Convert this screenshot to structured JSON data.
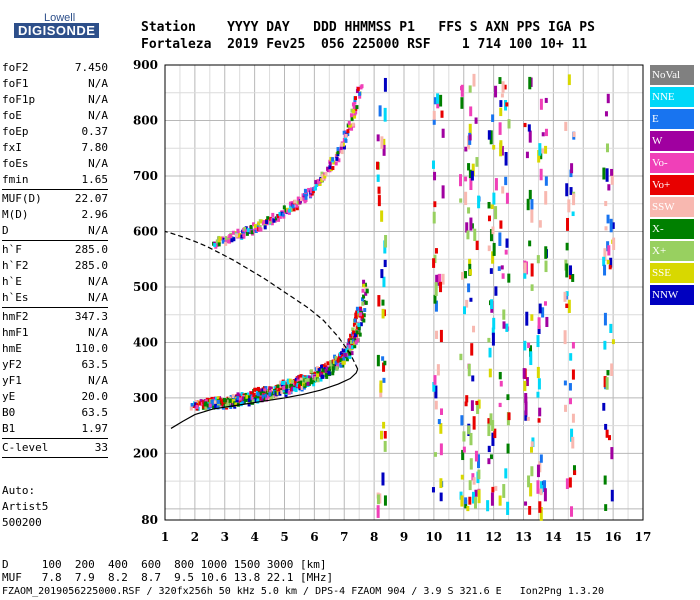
{
  "logo": {
    "top": "Lowell",
    "main": "DIGISONDE"
  },
  "header": {
    "row1": "Station    YYYY DAY   DDD HHMMSS P1   FFS S AXN PPS IGA PS",
    "row2": "Fortaleza  2019 Fev25  056 225000 RSF    1 714 100 10+ 11"
  },
  "params": {
    "group1": [
      {
        "label": "foF2",
        "value": "7.450"
      },
      {
        "label": "foF1",
        "value": "N/A"
      },
      {
        "label": "foF1p",
        "value": "N/A"
      },
      {
        "label": "foE",
        "value": "N/A"
      },
      {
        "label": "foEp",
        "value": "0.37"
      },
      {
        "label": "fxI",
        "value": "7.80"
      },
      {
        "label": "foEs",
        "value": "N/A"
      },
      {
        "label": "fmin",
        "value": "1.65"
      }
    ],
    "group2": [
      {
        "label": "MUF(D)",
        "value": "22.07"
      },
      {
        "label": "M(D)",
        "value": "2.96"
      },
      {
        "label": "D",
        "value": "N/A"
      }
    ],
    "group3": [
      {
        "label": "h`F",
        "value": "285.0"
      },
      {
        "label": "h`F2",
        "value": "285.0"
      },
      {
        "label": "h`E",
        "value": "N/A"
      },
      {
        "label": "h`Es",
        "value": "N/A"
      }
    ],
    "group4": [
      {
        "label": "hmF2",
        "value": "347.3"
      },
      {
        "label": "hmF1",
        "value": "N/A"
      },
      {
        "label": "hmE",
        "value": "110.0"
      },
      {
        "label": "yF2",
        "value": "63.5"
      },
      {
        "label": "yF1",
        "value": "N/A"
      },
      {
        "label": "yE",
        "value": "20.0"
      },
      {
        "label": "B0",
        "value": "63.5"
      },
      {
        "label": "B1",
        "value": "1.97"
      }
    ],
    "group5": [
      {
        "label": "C-level",
        "value": "33"
      }
    ]
  },
  "auto": {
    "l1": "Auto:",
    "l2": "Artist5",
    "l3": "500200"
  },
  "bottom": {
    "d_row": "D     100  200  400  600  800 1000 1500 3000 [km]",
    "muf_row": "MUF   7.8  7.9  8.2  8.7  9.5 10.6 13.8 22.1 [MHz]",
    "footer": "FZAOM_2019056225000.RSF / 320fx256h 50 kHz 5.0 km / DPS-4 FZAOM 904 / 3.9 S 321.6 E   Ion2Png 1.3.20"
  },
  "legend": [
    {
      "label": "NoVal",
      "color": "#808080",
      "text": "#ffffff"
    },
    {
      "label": "NNE",
      "color": "#00d8f8",
      "text": "#ffffff"
    },
    {
      "label": "E",
      "color": "#1874f0",
      "text": "#ffffff"
    },
    {
      "label": "W",
      "color": "#a000a0",
      "text": "#ffffff"
    },
    {
      "label": "Vo-",
      "color": "#f040b8",
      "text": "#ffffff"
    },
    {
      "label": "Vo+",
      "color": "#e80000",
      "text": "#ffffff"
    },
    {
      "label": "SSW",
      "color": "#f8b8b0",
      "text": "#ffffff"
    },
    {
      "label": "X-",
      "color": "#008000",
      "text": "#ffffff"
    },
    {
      "label": "X+",
      "color": "#98d060",
      "text": "#ffffff"
    },
    {
      "label": "SSE",
      "color": "#d8d800",
      "text": "#ffffff"
    },
    {
      "label": "NNW",
      "color": "#0000c0",
      "text": "#ffffff"
    }
  ],
  "chart_data": {
    "type": "scatter",
    "xlim": [
      1,
      17
    ],
    "ylim": [
      80,
      900
    ],
    "x_ticks": [
      1,
      2,
      3,
      4,
      5,
      6,
      7,
      8,
      9,
      10,
      11,
      12,
      13,
      14,
      15,
      16,
      17
    ],
    "y_ticks": [
      80,
      200,
      300,
      400,
      500,
      600,
      700,
      800,
      900
    ],
    "grid": true,
    "series": [
      {
        "kind": "o-trace",
        "color": "#e80000",
        "x": [
          1.9,
          2.3,
          2.8,
          3.3,
          3.8,
          4.3,
          4.8,
          5.3,
          5.8,
          6.3,
          6.8,
          7.1,
          7.3,
          7.45
        ],
        "y": [
          290,
          293,
          297,
          302,
          308,
          315,
          323,
          332,
          343,
          357,
          375,
          395,
          420,
          470
        ]
      },
      {
        "kind": "x-trace",
        "color": "#008000",
        "x": [
          2.3,
          2.8,
          3.3,
          3.8,
          4.3,
          4.8,
          5.3,
          5.8,
          6.3,
          6.8,
          7.2,
          7.5,
          7.7
        ],
        "y": [
          290,
          292,
          295,
          300,
          306,
          313,
          322,
          333,
          347,
          365,
          390,
          430,
          520
        ]
      },
      {
        "kind": "second-hop",
        "color": "#f040b8",
        "x": [
          2.6,
          3.2,
          3.8,
          4.3,
          4.8,
          5.3,
          5.8,
          6.3,
          6.8,
          7.2,
          7.5
        ],
        "y": [
          582,
          593,
          605,
          618,
          633,
          652,
          675,
          705,
          745,
          800,
          870
        ]
      },
      {
        "kind": "profile-solid",
        "color": "#000000",
        "x": [
          1.2,
          1.6,
          2.0,
          2.6,
          3.2,
          3.8,
          4.4,
          5.0,
          5.6,
          6.2,
          6.8,
          7.2,
          7.4,
          7.45
        ],
        "y": [
          245,
          258,
          270,
          280,
          285,
          290,
          295,
          300,
          306,
          314,
          325,
          335,
          345,
          352
        ]
      },
      {
        "kind": "profile-dashed",
        "color": "#000000",
        "x": [
          7.45,
          7.2,
          6.8,
          6.3,
          5.8,
          5.3,
          4.8,
          4.3,
          3.8,
          3.3,
          2.8,
          2.4,
          2.0,
          1.6,
          1.2,
          1.0
        ],
        "y": [
          352,
          380,
          410,
          440,
          462,
          480,
          498,
          516,
          532,
          548,
          562,
          573,
          582,
          590,
          597,
          600
        ]
      }
    ]
  }
}
